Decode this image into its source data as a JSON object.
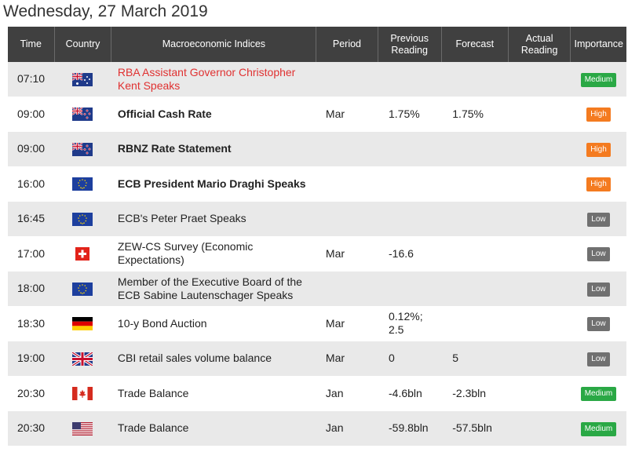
{
  "date_title": "Wednesday, 27 March 2019",
  "headers": {
    "time": "Time",
    "country": "Country",
    "indices": "Macroeconomic Indices",
    "period": "Period",
    "previous": "Previous Reading",
    "forecast": "Forecast",
    "actual": "Actual Reading",
    "importance": "Importance"
  },
  "colors": {
    "header_bg": "#404040",
    "row_alt": "#e9e9e9",
    "high": "#f47b20",
    "medium": "#2aa845",
    "low": "#707070",
    "highlight_text": "#e03131"
  },
  "rows": [
    {
      "time": "07:10",
      "country": "australia-flag-icon",
      "index": "RBA Assistant Governor Christopher Kent Speaks",
      "style": "red",
      "period": "",
      "previous": "",
      "forecast": "",
      "actual": "",
      "importance": "Medium"
    },
    {
      "time": "09:00",
      "country": "new-zealand-flag-icon",
      "index": "Official Cash Rate",
      "style": "bold",
      "period": "Mar",
      "previous": "1.75%",
      "forecast": "1.75%",
      "actual": "",
      "importance": "High"
    },
    {
      "time": "09:00",
      "country": "new-zealand-flag-icon",
      "index": "RBNZ Rate Statement",
      "style": "bold",
      "period": "",
      "previous": "",
      "forecast": "",
      "actual": "",
      "importance": "High"
    },
    {
      "time": "16:00",
      "country": "eu-flag-icon",
      "index": "ECB President Mario Draghi Speaks",
      "style": "bold",
      "period": "",
      "previous": "",
      "forecast": "",
      "actual": "",
      "importance": "High"
    },
    {
      "time": "16:45",
      "country": "eu-flag-icon",
      "index": "ECB's Peter Praet Speaks",
      "style": "normal",
      "period": "",
      "previous": "",
      "forecast": "",
      "actual": "",
      "importance": "Low"
    },
    {
      "time": "17:00",
      "country": "switzerland-flag-icon",
      "index": "ZEW-CS Survey (Economic Expectations)",
      "style": "normal",
      "period": "Mar",
      "previous": "-16.6",
      "forecast": "",
      "actual": "",
      "importance": "Low"
    },
    {
      "time": "18:00",
      "country": "eu-flag-icon",
      "index": "Member of the Executive Board of the ECB Sabine Lautenschager Speaks",
      "style": "normal",
      "period": "",
      "previous": "",
      "forecast": "",
      "actual": "",
      "importance": "Low"
    },
    {
      "time": "18:30",
      "country": "germany-flag-icon",
      "index": "10-y Bond Auction",
      "style": "normal",
      "period": "Mar",
      "previous": "0.12%; 2.5",
      "forecast": "",
      "actual": "",
      "importance": "Low"
    },
    {
      "time": "19:00",
      "country": "uk-flag-icon",
      "index": "CBI retail sales volume balance",
      "style": "normal",
      "period": "Mar",
      "previous": "0",
      "forecast": "5",
      "actual": "",
      "importance": "Low"
    },
    {
      "time": "20:30",
      "country": "canada-flag-icon",
      "index": "Trade Balance",
      "style": "normal",
      "period": "Jan",
      "previous": "-4.6bln",
      "forecast": "-2.3bln",
      "actual": "",
      "importance": "Medium"
    },
    {
      "time": "20:30",
      "country": "usa-flag-icon",
      "index": "Trade Balance",
      "style": "normal",
      "period": "Jan",
      "previous": "-59.8bln",
      "forecast": "-57.5bln",
      "actual": "",
      "importance": "Medium"
    }
  ]
}
